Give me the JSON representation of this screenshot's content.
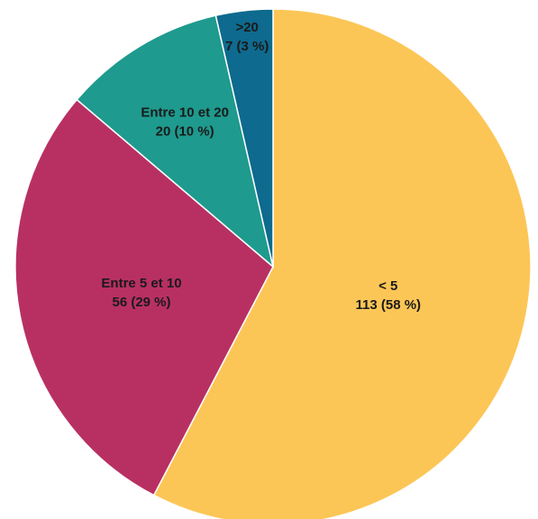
{
  "chart_data": {
    "type": "pie",
    "title": "",
    "start_angle_deg": 0,
    "direction": "clockwise",
    "slices": [
      {
        "label": "< 5",
        "value": 113,
        "value_text": "113 (58 %)",
        "percent": 58,
        "color": "#FCC656"
      },
      {
        "label": "Entre 5 et 10",
        "value": 56,
        "value_text": "56 (29 %)",
        "percent": 29,
        "color": "#B83062"
      },
      {
        "label": "Entre 10 et 20",
        "value": 20,
        "value_text": "20 (10 %)",
        "percent": 10,
        "color": "#1E9A8E"
      },
      {
        "label": ">20",
        "value": 7,
        "value_text": "7 (3 %)",
        "percent": 3,
        "color": "#0E6A8E"
      }
    ]
  }
}
